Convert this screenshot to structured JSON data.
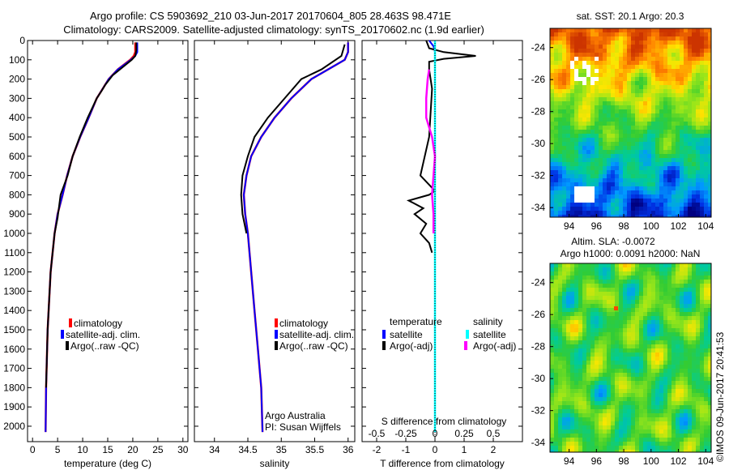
{
  "header": {
    "line1": "Argo profile: CS 5903692_210 03-Jun-2017 20170604_805 28.463S 98.471E",
    "line2": "Climatology: CARS2009. Satellite-adjusted climatology: synTS_20170602.nc (1.9d earlier)"
  },
  "side_label": "©IMOS 09-Jun-2017 20:41:53",
  "credit": {
    "line1": "Argo Australia",
    "line2": "PI: Susan Wijffels"
  },
  "colors": {
    "climatology": "#ff0000",
    "satellite": "#0000ff",
    "argo": "#000000",
    "satellite_s": "#00ffff",
    "argo_s": "#ff00ff"
  },
  "chart_data": [
    {
      "type": "line",
      "panel": "temperature",
      "xlabel": "temperature (deg C)",
      "ylim": [
        2080,
        0
      ],
      "xlim": [
        -1,
        31
      ],
      "xticks": [
        0,
        5,
        10,
        15,
        20,
        25,
        30
      ],
      "yticks": [
        0,
        100,
        200,
        300,
        400,
        500,
        600,
        700,
        800,
        900,
        1000,
        1100,
        1200,
        1300,
        1400,
        1500,
        1600,
        1700,
        1800,
        1900,
        2000
      ],
      "legend": [
        "climatology",
        "satellite-adj. clim.",
        "Argo(..raw -QC)"
      ],
      "series": [
        {
          "name": "climatology",
          "x": [
            20.5,
            20.5,
            20.2,
            19.5,
            17.0,
            15.2,
            14.0,
            12.8,
            11.2,
            9.5,
            8.0,
            6.9,
            6.0,
            5.0,
            4.4,
            3.6,
            3.0,
            2.7,
            2.6
          ],
          "y": [
            10,
            60,
            80,
            100,
            150,
            200,
            250,
            300,
            400,
            500,
            600,
            700,
            800,
            900,
            1000,
            1200,
            1500,
            1800,
            2030
          ]
        },
        {
          "name": "satellite-adj. clim.",
          "x": [
            20.9,
            20.9,
            20.5,
            19.6,
            17.0,
            15.2,
            14.0,
            12.8,
            11.2,
            9.5,
            8.0,
            6.9,
            6.0,
            5.0,
            4.4,
            3.6,
            3.0,
            2.7,
            2.6
          ],
          "y": [
            10,
            60,
            80,
            100,
            150,
            200,
            250,
            300,
            400,
            500,
            600,
            700,
            800,
            900,
            1000,
            1200,
            1500,
            1800,
            2030
          ]
        },
        {
          "name": "Argo(..raw -QC)",
          "x": [
            20.7,
            20.7,
            20.5,
            19.8,
            16.0,
            14.5,
            13.8,
            12.8,
            11.0,
            9.4,
            8.0,
            7.0,
            5.6,
            5.0,
            4.4,
            3.6,
            3.0,
            2.7
          ],
          "y": [
            10,
            50,
            80,
            100,
            180,
            230,
            260,
            300,
            400,
            500,
            600,
            700,
            800,
            920,
            1000,
            1200,
            1500,
            1800
          ]
        }
      ]
    },
    {
      "type": "line",
      "panel": "salinity",
      "xlabel": "salinity",
      "ylim": [
        2080,
        0
      ],
      "xlim": [
        33.7,
        36.1
      ],
      "xticks": [
        34,
        34.5,
        35,
        35.5,
        36
      ],
      "legend": [
        "climatology",
        "satellite-adj. clim.",
        "Argo(..raw -QC)"
      ],
      "series": [
        {
          "name": "climatology",
          "x": [
            36.0,
            36.0,
            35.95,
            35.7,
            35.45,
            35.15,
            34.9,
            34.7,
            34.55,
            34.48,
            34.44,
            34.46,
            34.5,
            34.55,
            34.6,
            34.65,
            34.7,
            34.72
          ],
          "y": [
            10,
            60,
            100,
            150,
            200,
            300,
            400,
            500,
            600,
            700,
            800,
            900,
            1000,
            1200,
            1400,
            1600,
            1800,
            2030
          ]
        },
        {
          "name": "satellite-adj. clim.",
          "x": [
            36.0,
            36.0,
            35.95,
            35.7,
            35.45,
            35.15,
            34.9,
            34.7,
            34.55,
            34.48,
            34.44,
            34.46,
            34.5,
            34.55,
            34.6,
            34.65,
            34.7,
            34.72
          ],
          "y": [
            10,
            60,
            100,
            150,
            200,
            300,
            400,
            500,
            600,
            700,
            800,
            900,
            1000,
            1200,
            1400,
            1600,
            1800,
            2030
          ]
        },
        {
          "name": "Argo(..raw -QC)",
          "x": [
            35.95,
            35.9,
            35.6,
            35.3,
            35.05,
            34.8,
            34.6,
            34.5,
            34.42,
            34.4,
            34.42,
            34.48
          ],
          "y": [
            20,
            80,
            150,
            200,
            300,
            400,
            500,
            600,
            700,
            800,
            900,
            1000
          ]
        }
      ]
    },
    {
      "type": "line",
      "panel": "difference",
      "xlabel": "T difference from climatology",
      "x2label": "S difference from climatology",
      "ylim": [
        2080,
        0
      ],
      "xlim": [
        -2.5,
        3
      ],
      "xticks": [
        -2,
        -1,
        0,
        1,
        2
      ],
      "x2ticks": [
        "-0.5",
        "-0.25",
        "0",
        "0.25",
        "0.5"
      ],
      "legend_headers": [
        "temperature",
        "salinity"
      ],
      "legend": [
        "satellite",
        "Argo(-adj)",
        "satellite",
        "Argo(-adj)"
      ],
      "series": [
        {
          "name": "satellite",
          "x": [
            -0.2,
            -0.05,
            0.0,
            0.0,
            0.0
          ],
          "y": [
            0,
            30,
            60,
            150,
            2030
          ]
        },
        {
          "name": "Argo(-adj)",
          "x": [
            -0.3,
            -0.2,
            0.3,
            1.4,
            0.3,
            -0.2,
            -0.2,
            -0.1,
            -0.2,
            -0.5,
            0.0,
            -0.2,
            -0.9,
            -0.4,
            -0.7,
            -0.3,
            -0.5,
            -0.2,
            -0.1
          ],
          "y": [
            0,
            40,
            60,
            80,
            95,
            110,
            150,
            250,
            500,
            700,
            780,
            800,
            830,
            870,
            900,
            950,
            1000,
            1050,
            1100
          ]
        },
        {
          "name": "satellite",
          "x": [
            0.0,
            0.0,
            0.0
          ],
          "y": [
            0,
            150,
            2030
          ]
        },
        {
          "name": "Argo(-adj)",
          "x": [
            -0.2,
            -0.25,
            -0.3,
            -0.3,
            -0.1,
            0.0,
            -0.05,
            -0.1,
            -0.05,
            -0.05
          ],
          "y": [
            150,
            200,
            300,
            400,
            500,
            600,
            700,
            800,
            900,
            1000
          ]
        }
      ]
    },
    {
      "type": "heatmap",
      "panel": "sst_map",
      "title": "sat. SST: 20.1 Argo: 20.3",
      "xticks": [
        94,
        96,
        98,
        100,
        102,
        104
      ],
      "yticks": [
        -24,
        -26,
        -28,
        -30,
        -32,
        -34
      ]
    },
    {
      "type": "heatmap",
      "panel": "sla_map",
      "title1": "Altim. SLA: -0.0072",
      "title2": "Argo h1000: 0.0091 h2000: NaN",
      "xticks": [
        94,
        96,
        98,
        100,
        102,
        104
      ],
      "yticks": [
        -24,
        -26,
        -28,
        -30,
        -32,
        -34
      ]
    }
  ]
}
